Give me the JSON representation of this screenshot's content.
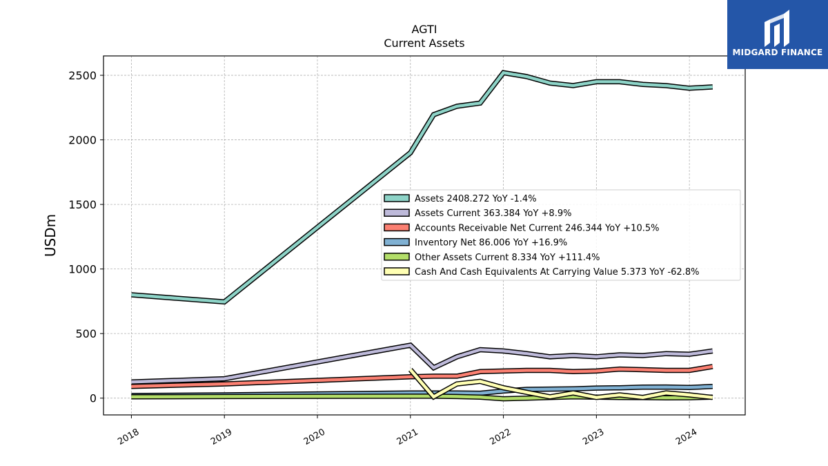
{
  "brand": {
    "name": "MIDGARD FINANCE",
    "color": "#2456a8"
  },
  "chart_data": {
    "type": "line",
    "title": "AGTI",
    "subtitle": "Current  Assets",
    "ylabel": "USDm",
    "xlabel": "",
    "ylim": [
      -130,
      2650
    ],
    "xlim": [
      2017.7,
      2024.6
    ],
    "yticks": [
      0,
      500,
      1000,
      1500,
      2000,
      2500
    ],
    "xticks": [
      2018,
      2019,
      2020,
      2021,
      2022,
      2023,
      2024
    ],
    "grid": true,
    "legend_position": "center-right",
    "series": [
      {
        "name": "Assets",
        "legend": "Assets  2408.272 YoY -1.4%",
        "color": "#8dd3c7",
        "points": [
          [
            2018.0,
            800
          ],
          [
            2019.0,
            745
          ],
          [
            2021.0,
            1900
          ],
          [
            2021.25,
            2195
          ],
          [
            2021.5,
            2260
          ],
          [
            2021.75,
            2285
          ],
          [
            2022.0,
            2520
          ],
          [
            2022.25,
            2490
          ],
          [
            2022.5,
            2440
          ],
          [
            2022.75,
            2420
          ],
          [
            2023.0,
            2450
          ],
          [
            2023.25,
            2450
          ],
          [
            2023.5,
            2430
          ],
          [
            2023.75,
            2420
          ],
          [
            2024.0,
            2400
          ],
          [
            2024.25,
            2410
          ]
        ]
      },
      {
        "name": "Assets Current",
        "legend": "Assets Current  363.384 YoY +8.9%",
        "color": "#bebada",
        "points": [
          [
            2018.0,
            125
          ],
          [
            2019.0,
            150
          ],
          [
            2021.0,
            410
          ],
          [
            2021.25,
            235
          ],
          [
            2021.5,
            320
          ],
          [
            2021.75,
            375
          ],
          [
            2022.0,
            365
          ],
          [
            2022.25,
            345
          ],
          [
            2022.5,
            320
          ],
          [
            2022.75,
            330
          ],
          [
            2023.0,
            320
          ],
          [
            2023.25,
            335
          ],
          [
            2023.5,
            330
          ],
          [
            2023.75,
            345
          ],
          [
            2024.0,
            340
          ],
          [
            2024.25,
            365
          ]
        ]
      },
      {
        "name": "Accounts Receivable Net Current",
        "legend": "Accounts Receivable Net Current  246.344 YoY +10.5%",
        "color": "#fb8072",
        "points": [
          [
            2018.0,
            90
          ],
          [
            2019.0,
            110
          ],
          [
            2021.0,
            165
          ],
          [
            2021.25,
            170
          ],
          [
            2021.5,
            170
          ],
          [
            2021.75,
            205
          ],
          [
            2022.0,
            210
          ],
          [
            2022.25,
            215
          ],
          [
            2022.5,
            215
          ],
          [
            2022.75,
            205
          ],
          [
            2023.0,
            210
          ],
          [
            2023.25,
            225
          ],
          [
            2023.5,
            220
          ],
          [
            2023.75,
            215
          ],
          [
            2024.0,
            215
          ],
          [
            2024.25,
            245
          ]
        ]
      },
      {
        "name": "Inventory Net",
        "legend": "Inventory Net  86.006 YoY +16.9%",
        "color": "#80b1d3",
        "points": [
          [
            2018.0,
            20
          ],
          [
            2019.0,
            25
          ],
          [
            2021.0,
            40
          ],
          [
            2021.25,
            40
          ],
          [
            2021.5,
            40
          ],
          [
            2021.75,
            38
          ],
          [
            2022.0,
            55
          ],
          [
            2022.25,
            68
          ],
          [
            2022.5,
            70
          ],
          [
            2022.75,
            72
          ],
          [
            2023.0,
            78
          ],
          [
            2023.25,
            80
          ],
          [
            2023.5,
            85
          ],
          [
            2023.75,
            86
          ],
          [
            2024.0,
            82
          ],
          [
            2024.25,
            90
          ]
        ]
      },
      {
        "name": "Other Assets Current",
        "legend": "Other Assets Current  8.334 YoY +111.4%",
        "color": "#b3de69",
        "points": [
          [
            2018.0,
            10
          ],
          [
            2019.0,
            12
          ],
          [
            2021.0,
            15
          ],
          [
            2021.25,
            15
          ],
          [
            2021.5,
            12
          ],
          [
            2021.75,
            8
          ],
          [
            2022.0,
            -5
          ],
          [
            2022.25,
            0
          ],
          [
            2022.5,
            5
          ],
          [
            2022.75,
            10
          ],
          [
            2023.0,
            8
          ],
          [
            2023.25,
            5
          ],
          [
            2023.5,
            4
          ],
          [
            2023.75,
            2
          ],
          [
            2024.0,
            3
          ],
          [
            2024.25,
            8
          ]
        ]
      },
      {
        "name": "Cash And Cash Equivalents At Carrying Value",
        "legend": "Cash And Cash Equivalents At Carrying Value  5.373 YoY -62.8%",
        "color": "#ffffb3",
        "points": [
          [
            2021.0,
            220
          ],
          [
            2021.25,
            10
          ],
          [
            2021.5,
            110
          ],
          [
            2021.75,
            130
          ],
          [
            2022.0,
            80
          ],
          [
            2022.25,
            45
          ],
          [
            2022.5,
            10
          ],
          [
            2022.75,
            40
          ],
          [
            2023.0,
            5
          ],
          [
            2023.25,
            25
          ],
          [
            2023.5,
            5
          ],
          [
            2023.75,
            40
          ],
          [
            2024.0,
            25
          ],
          [
            2024.25,
            5
          ]
        ]
      }
    ]
  }
}
